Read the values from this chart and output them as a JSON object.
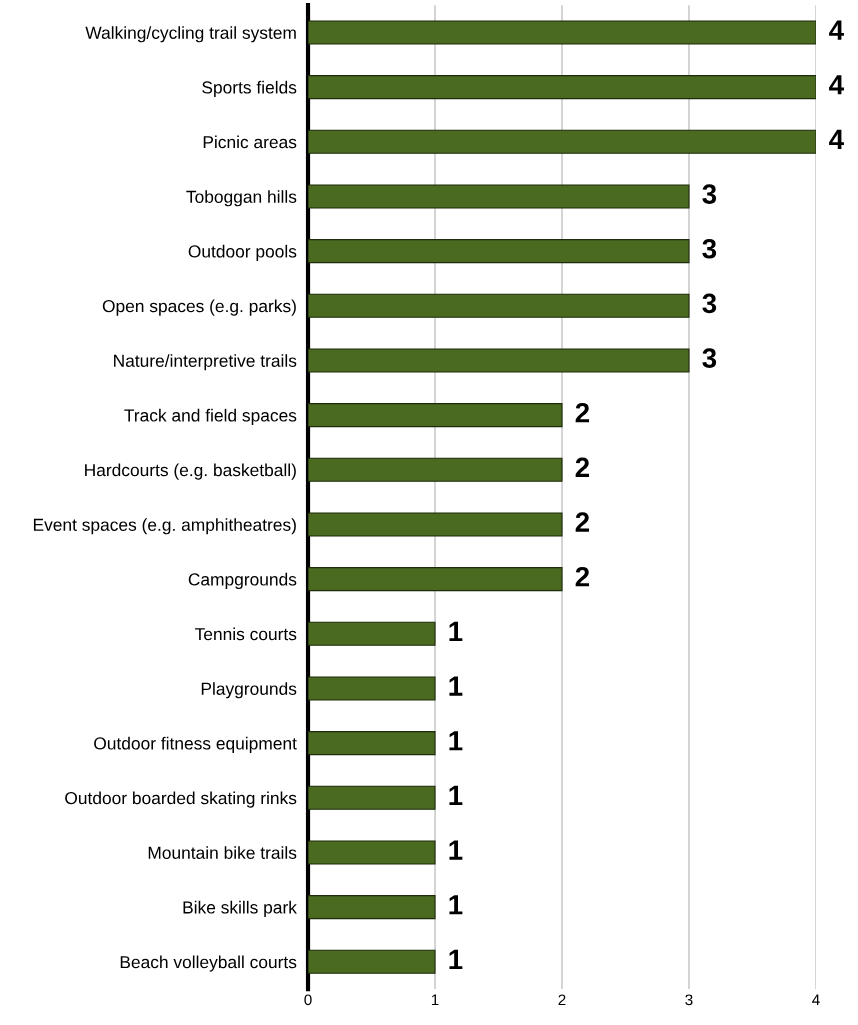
{
  "chart_data": {
    "type": "bar",
    "orientation": "horizontal",
    "categories": [
      "Walking/cycling trail system",
      "Sports fields",
      "Picnic areas",
      "Toboggan hills",
      "Outdoor pools",
      "Open spaces (e.g. parks)",
      "Nature/interpretive trails",
      "Track and field spaces",
      "Hardcourts (e.g. basketball)",
      "Event spaces (e.g. amphitheatres)",
      "Campgrounds",
      "Tennis courts",
      "Playgrounds",
      "Outdoor fitness equipment",
      "Outdoor boarded skating rinks",
      "Mountain bike trails",
      "Bike skills park",
      "Beach volleyball courts"
    ],
    "values": [
      4,
      4,
      4,
      3,
      3,
      3,
      3,
      2,
      2,
      2,
      2,
      1,
      1,
      1,
      1,
      1,
      1,
      1
    ],
    "color": "#4a6b1f",
    "xlim": [
      0,
      4
    ],
    "xticks": [
      0,
      1,
      2,
      3,
      4
    ],
    "grid": "x",
    "data_labels": true,
    "legend": false
  }
}
